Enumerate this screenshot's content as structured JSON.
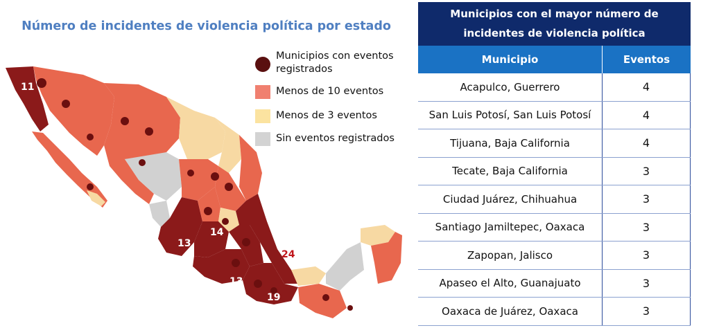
{
  "map": {
    "title": "Número de incidentes de violencia política por estado",
    "legend": [
      {
        "label": "Municipios con eventos registrados",
        "color": "#5a1010"
      },
      {
        "label": "Menos de 10 eventos",
        "color": "#f08070"
      },
      {
        "label": "Menos de 3 eventos",
        "color": "#fbe3a0"
      },
      {
        "label": "Sin eventos registrados",
        "color": "#d3d3d3"
      }
    ],
    "state_counts": [
      {
        "value": "11",
        "state": "Baja California"
      },
      {
        "value": "14",
        "state": "Michoacán"
      },
      {
        "value": "13",
        "state": "Jalisco"
      },
      {
        "value": "13",
        "state": "Guerrero"
      },
      {
        "value": "24",
        "state": "Puebla"
      },
      {
        "value": "19",
        "state": "Oaxaca"
      }
    ],
    "colors": {
      "dark": "#8b1a1a",
      "mid": "#e8674e",
      "light": "#f7d9a3",
      "grey": "#d1d1d1",
      "dots": "#6b0f0f"
    }
  },
  "table": {
    "title": "Municipios con el mayor número de incidentes de violencia política",
    "headers": {
      "municipio": "Municipio",
      "eventos": "Eventos"
    },
    "rows": [
      {
        "municipio": "Acapulco, Guerrero",
        "eventos": "4"
      },
      {
        "municipio": "San Luis Potosí, San Luis Potosí",
        "eventos": "4"
      },
      {
        "municipio": "Tijuana, Baja California",
        "eventos": "4"
      },
      {
        "municipio": "Tecate, Baja California",
        "eventos": "3"
      },
      {
        "municipio": "Ciudad Juárez, Chihuahua",
        "eventos": "3"
      },
      {
        "municipio": "Santiago Jamiltepec, Oaxaca",
        "eventos": "3"
      },
      {
        "municipio": "Zapopan, Jalisco",
        "eventos": "3"
      },
      {
        "municipio": "Apaseo el Alto, Guanajuato",
        "eventos": "3"
      },
      {
        "municipio": "Oaxaca de Juárez, Oaxaca",
        "eventos": "3"
      }
    ]
  }
}
